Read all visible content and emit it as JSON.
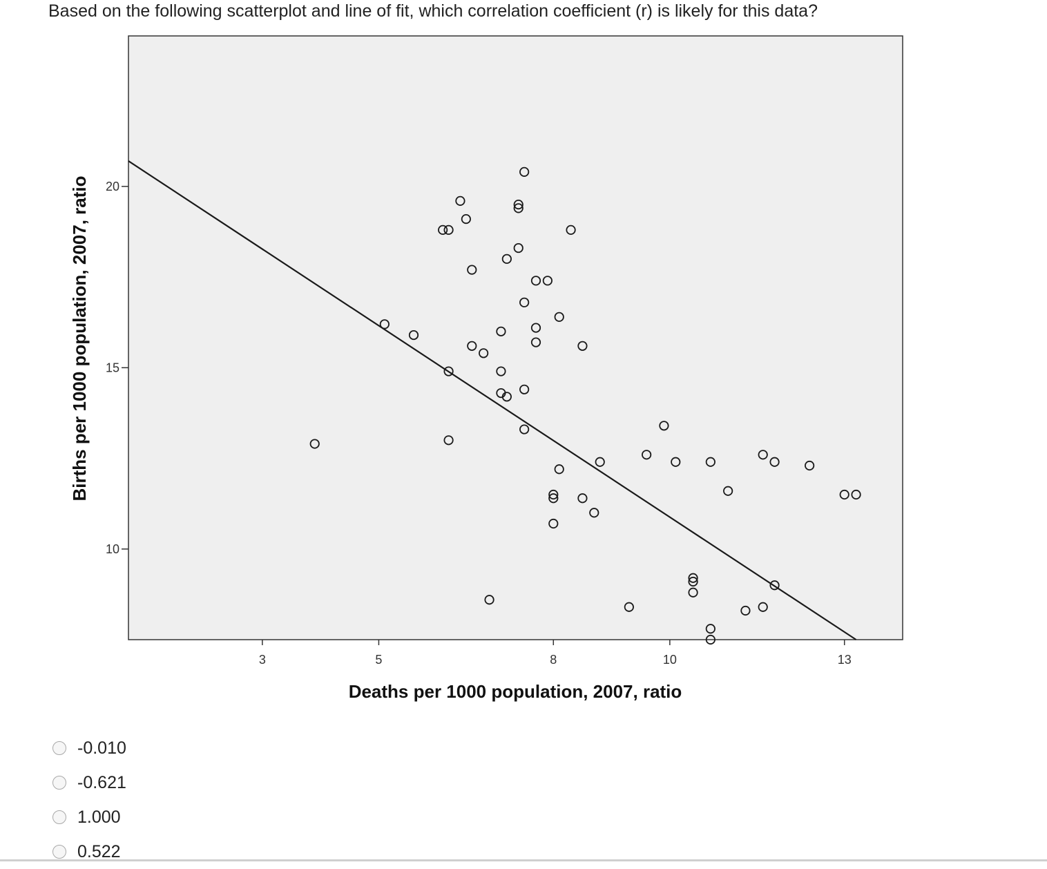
{
  "question": "Based on the following scatterplot and line of fit, which correlation coefficient (r) is likely for this data?",
  "chart_data": {
    "type": "scatter",
    "title": "",
    "xlabel": "Deaths per 1000 population, 2007, ratio",
    "ylabel": "Births per 1000 population, 2007, ratio",
    "xlim": [
      0.7,
      14.0
    ],
    "ylim": [
      7.5,
      24.15
    ],
    "xticks": [
      3,
      5,
      8,
      10,
      13
    ],
    "yticks": [
      10,
      15,
      20
    ],
    "grid": false,
    "background": "#efefef",
    "point_color": "#1a1a1a",
    "fit_line": [
      [
        0.7,
        20.7
      ],
      [
        13.2,
        7.5
      ]
    ],
    "points": [
      {
        "x": 3.9,
        "y": 12.9
      },
      {
        "x": 5.1,
        "y": 16.2
      },
      {
        "x": 5.6,
        "y": 15.9
      },
      {
        "x": 6.1,
        "y": 18.8
      },
      {
        "x": 6.2,
        "y": 18.8
      },
      {
        "x": 6.4,
        "y": 19.6
      },
      {
        "x": 6.5,
        "y": 19.1
      },
      {
        "x": 6.6,
        "y": 17.7
      },
      {
        "x": 6.6,
        "y": 15.6
      },
      {
        "x": 6.2,
        "y": 14.9
      },
      {
        "x": 6.2,
        "y": 13.0
      },
      {
        "x": 6.8,
        "y": 15.4
      },
      {
        "x": 7.1,
        "y": 16.0
      },
      {
        "x": 7.1,
        "y": 14.9
      },
      {
        "x": 7.1,
        "y": 14.3
      },
      {
        "x": 7.2,
        "y": 14.2
      },
      {
        "x": 7.2,
        "y": 18.0
      },
      {
        "x": 7.4,
        "y": 19.5
      },
      {
        "x": 7.4,
        "y": 19.4
      },
      {
        "x": 7.4,
        "y": 18.3
      },
      {
        "x": 7.5,
        "y": 20.4
      },
      {
        "x": 7.5,
        "y": 16.8
      },
      {
        "x": 7.5,
        "y": 14.4
      },
      {
        "x": 7.5,
        "y": 13.3
      },
      {
        "x": 7.7,
        "y": 17.4
      },
      {
        "x": 7.7,
        "y": 16.1
      },
      {
        "x": 7.7,
        "y": 15.7
      },
      {
        "x": 7.9,
        "y": 17.4
      },
      {
        "x": 8.1,
        "y": 16.4
      },
      {
        "x": 8.1,
        "y": 12.2
      },
      {
        "x": 8.0,
        "y": 11.5
      },
      {
        "x": 8.0,
        "y": 11.4
      },
      {
        "x": 8.0,
        "y": 10.7
      },
      {
        "x": 8.3,
        "y": 18.8
      },
      {
        "x": 8.5,
        "y": 15.6
      },
      {
        "x": 8.5,
        "y": 11.4
      },
      {
        "x": 8.7,
        "y": 11.0
      },
      {
        "x": 8.8,
        "y": 12.4
      },
      {
        "x": 6.9,
        "y": 8.6
      },
      {
        "x": 9.3,
        "y": 8.4
      },
      {
        "x": 9.6,
        "y": 12.6
      },
      {
        "x": 9.9,
        "y": 13.4
      },
      {
        "x": 10.1,
        "y": 12.4
      },
      {
        "x": 10.4,
        "y": 9.2
      },
      {
        "x": 10.4,
        "y": 9.1
      },
      {
        "x": 10.4,
        "y": 8.8
      },
      {
        "x": 10.7,
        "y": 12.4
      },
      {
        "x": 10.7,
        "y": 7.8
      },
      {
        "x": 10.7,
        "y": 7.5
      },
      {
        "x": 11.0,
        "y": 11.6
      },
      {
        "x": 11.3,
        "y": 8.3
      },
      {
        "x": 11.6,
        "y": 12.6
      },
      {
        "x": 11.8,
        "y": 12.4
      },
      {
        "x": 11.6,
        "y": 8.4
      },
      {
        "x": 11.8,
        "y": 9.0
      },
      {
        "x": 12.4,
        "y": 12.3
      },
      {
        "x": 13.0,
        "y": 11.5
      },
      {
        "x": 13.2,
        "y": 11.5
      }
    ]
  },
  "options": [
    {
      "label": "-0.010"
    },
    {
      "label": "-0.621"
    },
    {
      "label": "1.000"
    },
    {
      "label": "0.522"
    }
  ]
}
